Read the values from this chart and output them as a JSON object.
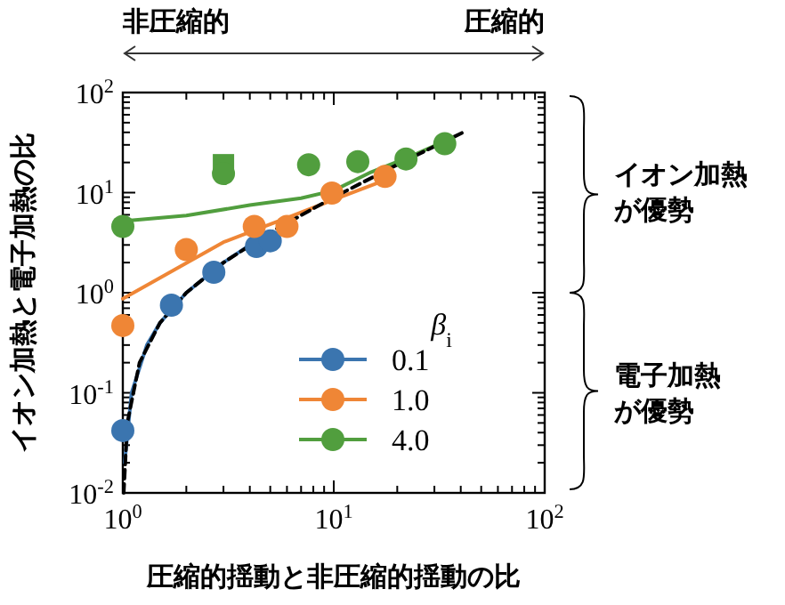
{
  "chart_data": {
    "type": "scatter",
    "xlabel": "圧縮的揺動と非圧縮的揺動の比",
    "ylabel": "イオン加熱と電子加熱の比",
    "legend_title": "β$_{i}$",
    "legend": "bottom right",
    "log": "xy",
    "grid": false,
    "xlim": [
      1,
      100
    ],
    "ylim": [
      0.01,
      100
    ],
    "xticks": [
      {
        "value": 1,
        "label": "10$^{0}$"
      },
      {
        "value": 2,
        "label": null
      },
      {
        "value": 3,
        "label": null
      },
      {
        "value": 4,
        "label": null
      },
      {
        "value": 5,
        "label": null
      },
      {
        "value": 6,
        "label": null
      },
      {
        "value": 7,
        "label": null
      },
      {
        "value": 8,
        "label": null
      },
      {
        "value": 9,
        "label": null
      },
      {
        "value": 10,
        "label": "10$^{1}$"
      },
      {
        "value": 20,
        "label": null
      },
      {
        "value": 30,
        "label": null
      },
      {
        "value": 40,
        "label": null
      },
      {
        "value": 50,
        "label": null
      },
      {
        "value": 60,
        "label": null
      },
      {
        "value": 70,
        "label": null
      },
      {
        "value": 80,
        "label": null
      },
      {
        "value": 90,
        "label": null
      },
      {
        "value": 100,
        "label": "10$^{2}$"
      }
    ],
    "yticks": [
      {
        "value": 0.01,
        "label": "10$^{-2}$"
      },
      {
        "value": 0.02,
        "label": null
      },
      {
        "value": 0.03,
        "label": null
      },
      {
        "value": 0.04,
        "label": null
      },
      {
        "value": 0.05,
        "label": null
      },
      {
        "value": 0.06,
        "label": null
      },
      {
        "value": 0.07,
        "label": null
      },
      {
        "value": 0.08,
        "label": null
      },
      {
        "value": 0.09,
        "label": null
      },
      {
        "value": 0.1,
        "label": "10$^{-1}$"
      },
      {
        "value": 0.2,
        "label": null
      },
      {
        "value": 0.3,
        "label": null
      },
      {
        "value": 0.4,
        "label": null
      },
      {
        "value": 0.5,
        "label": null
      },
      {
        "value": 0.6,
        "label": null
      },
      {
        "value": 0.7,
        "label": null
      },
      {
        "value": 0.8,
        "label": null
      },
      {
        "value": 0.9,
        "label": null
      },
      {
        "value": 1,
        "label": "10$^{0}$"
      },
      {
        "value": 2,
        "label": null
      },
      {
        "value": 3,
        "label": null
      },
      {
        "value": 4,
        "label": null
      },
      {
        "value": 5,
        "label": null
      },
      {
        "value": 6,
        "label": null
      },
      {
        "value": 7,
        "label": null
      },
      {
        "value": 8,
        "label": null
      },
      {
        "value": 9,
        "label": null
      },
      {
        "value": 10,
        "label": "10$^{1}$"
      },
      {
        "value": 20,
        "label": null
      },
      {
        "value": 30,
        "label": null
      },
      {
        "value": 40,
        "label": null
      },
      {
        "value": 50,
        "label": null
      },
      {
        "value": 60,
        "label": null
      },
      {
        "value": 70,
        "label": null
      },
      {
        "value": 80,
        "label": null
      },
      {
        "value": 90,
        "label": null
      },
      {
        "value": 100,
        "label": "10$^{2}$"
      }
    ],
    "annotations": [
      "非圧縮的",
      "圧縮的",
      "イオン加熱が優勢",
      "電子加熱が優勢"
    ],
    "series": [
      {
        "type": "line",
        "color": "#3b75af",
        "x": [
          1.02,
          1.1,
          1.3,
          1.5,
          2,
          3,
          4,
          5
        ],
        "values": [
          0.02,
          0.1,
          0.3,
          0.5,
          1,
          2,
          3,
          4
        ]
      },
      {
        "type": "line",
        "color": "#ef8636",
        "x": [
          1,
          3,
          6,
          10,
          17
        ],
        "values": [
          0.87,
          3.2,
          5.6,
          8.5,
          13
        ]
      },
      {
        "type": "line",
        "color": "#519e3e",
        "x": [
          1,
          2,
          4,
          7,
          10,
          15,
          22,
          33
        ],
        "values": [
          5.2,
          5.9,
          7.5,
          8.8,
          10.5,
          16,
          22,
          32
        ]
      },
      {
        "type": "line",
        "color": "#000000",
        "line_style": "dashed",
        "x": [
          1.01,
          1.05,
          1.2,
          1.5,
          2,
          3,
          5,
          10,
          20,
          42
        ],
        "values": [
          0.01,
          0.05,
          0.2,
          0.5,
          1,
          2,
          4,
          9,
          19,
          41
        ]
      },
      {
        "marker": "square",
        "color": "#519e3e",
        "x": [
          3
        ],
        "values": [
          19
        ]
      },
      {
        "marker": "circle",
        "name": "0.1",
        "color": "#3b75af",
        "x": [
          1,
          1.7,
          2.7,
          4.3,
          5
        ],
        "values": [
          0.042,
          0.75,
          1.6,
          2.9,
          3.3
        ]
      },
      {
        "marker": "circle",
        "name": "1.0",
        "color": "#ef8636",
        "x": [
          1,
          2,
          4.2,
          6,
          9.8,
          17.5
        ],
        "values": [
          0.47,
          2.7,
          4.6,
          4.6,
          9.9,
          14.5
        ]
      },
      {
        "marker": "circle",
        "name": "4.0",
        "color": "#519e3e",
        "x": [
          1,
          3,
          7.6,
          13,
          22
        ],
        "values": [
          4.6,
          15.5,
          19,
          20.4,
          21.7
        ]
      },
      {
        "marker": "circle",
        "color": "#519e3e",
        "x": [
          33.6
        ],
        "values": [
          30.8
        ]
      }
    ]
  }
}
